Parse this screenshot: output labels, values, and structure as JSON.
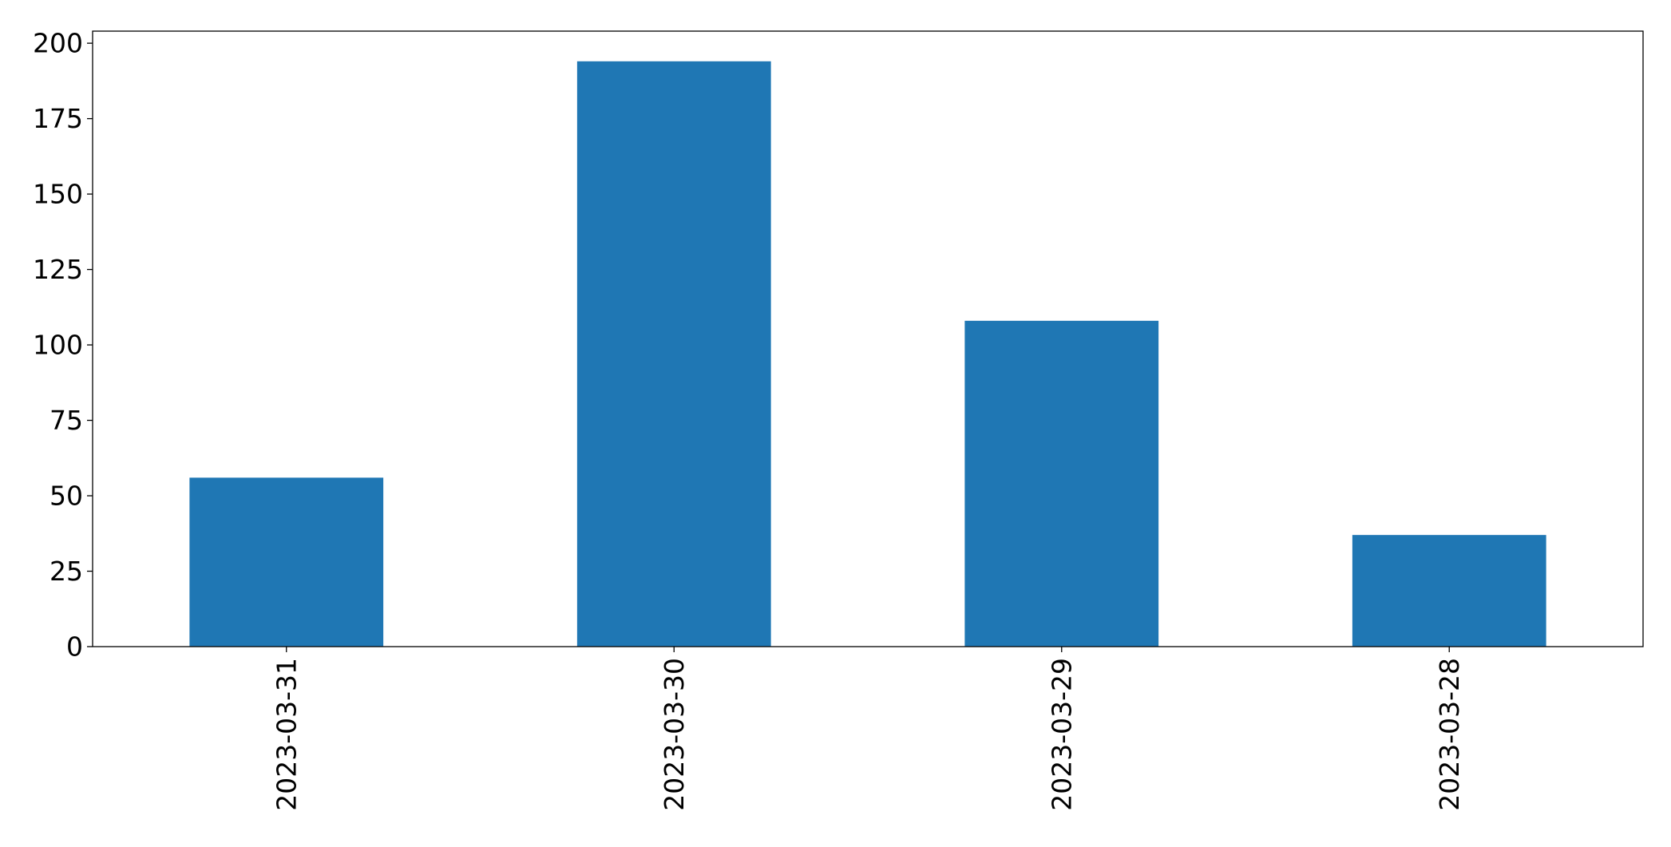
{
  "chart_data": {
    "type": "bar",
    "categories": [
      "2023-03-31",
      "2023-03-30",
      "2023-03-29",
      "2023-03-28"
    ],
    "values": [
      56,
      194,
      108,
      37
    ],
    "title": "",
    "xlabel": "",
    "ylabel": "",
    "ylim": [
      0,
      204
    ],
    "yticks": [
      0,
      25,
      50,
      75,
      100,
      125,
      150,
      175,
      200
    ],
    "x_tick_rotation": "vertical",
    "grid": false,
    "legend": "none",
    "colors": {
      "bar": "#1f77b4",
      "axes": "#000000",
      "background": "#ffffff"
    }
  }
}
